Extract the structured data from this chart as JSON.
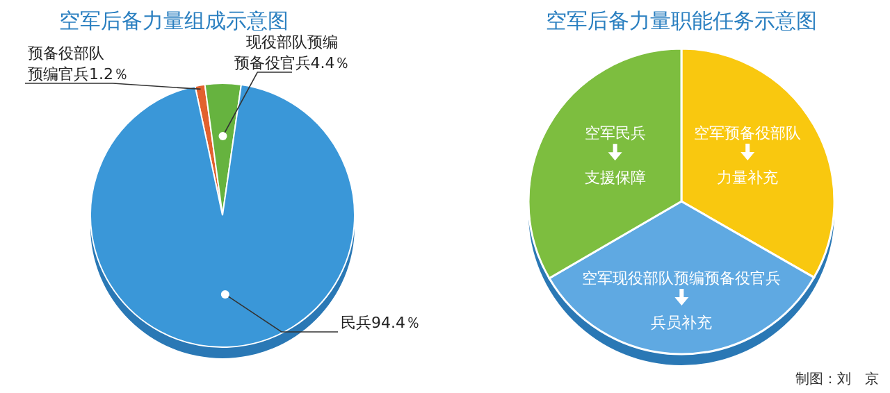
{
  "chart_data": [
    {
      "type": "pie",
      "title": "空军后备力量组成示意图",
      "categories": [
        "预备役部队预编官兵",
        "现役部队预编预备役官兵",
        "民兵"
      ],
      "values": [
        1.2,
        4.4,
        94.4
      ],
      "value_labels": [
        "1.2％",
        "4.4％",
        "94.4％"
      ],
      "colors": [
        "#e2612e",
        "#66b33f",
        "#3a97d8"
      ]
    },
    {
      "type": "pie",
      "title": "空军后备力量职能任务示意图",
      "categories": [
        "空军预备役部队",
        "空军现役部队预编预备役官兵",
        "空军民兵"
      ],
      "values": [
        33.3,
        33.3,
        33.4
      ],
      "colors": [
        "#f9c80f",
        "#5fa9e2",
        "#7dbe3f"
      ],
      "annotations": [
        "力量补充",
        "兵员补充",
        "支援保障",
        "制图：刘　京"
      ]
    }
  ]
}
